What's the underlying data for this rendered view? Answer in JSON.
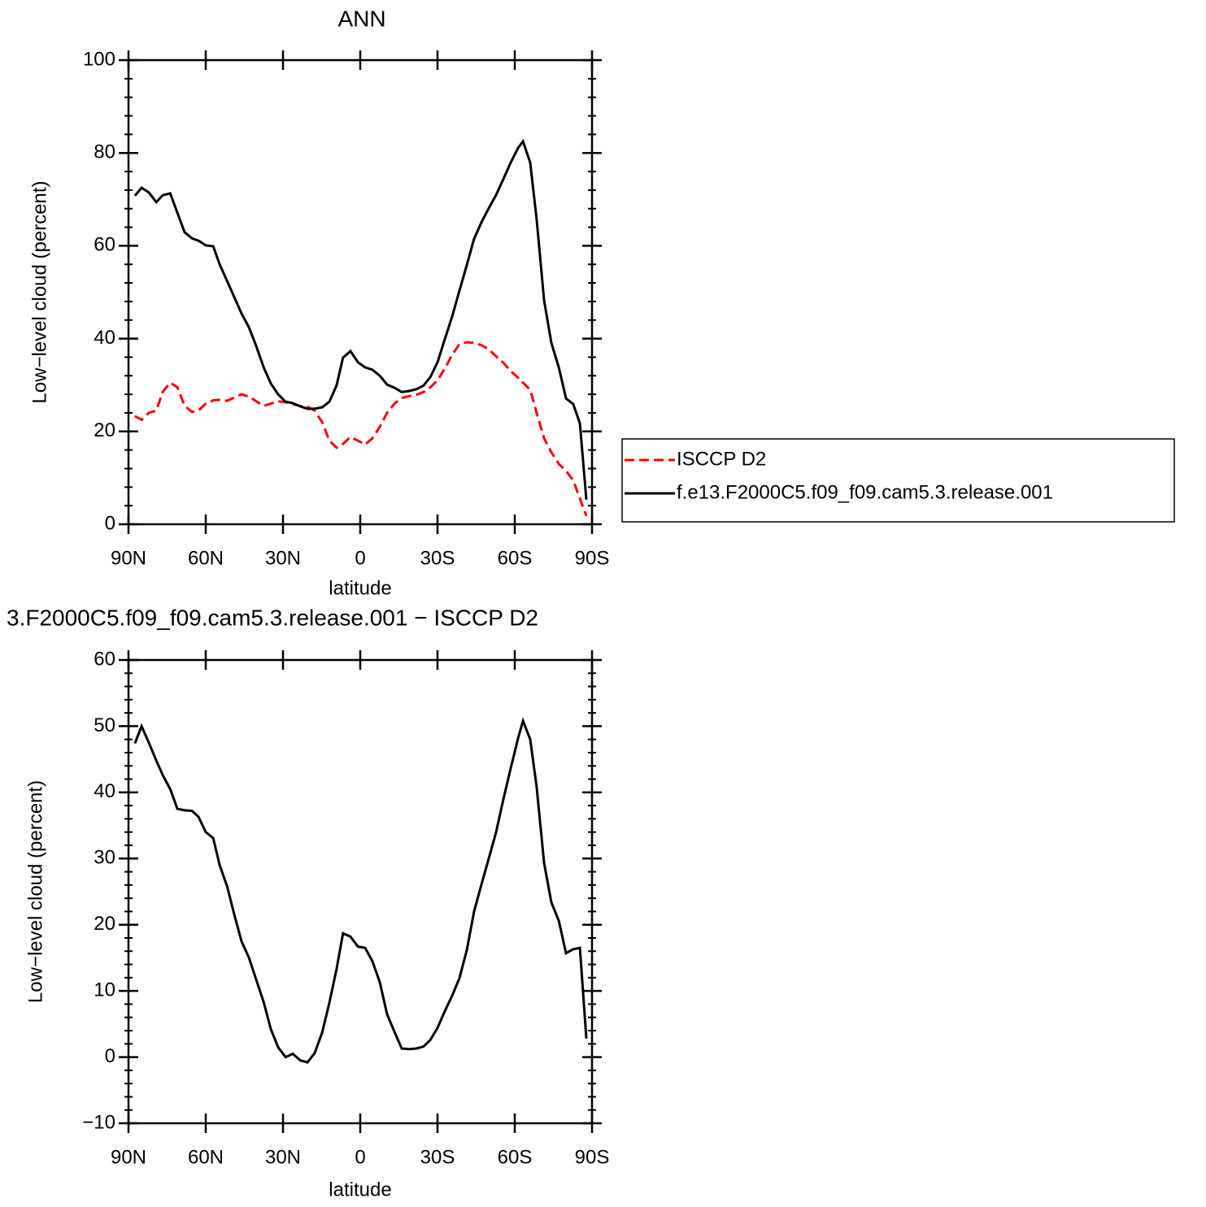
{
  "chart_data": [
    {
      "type": "line",
      "title": "ANN",
      "xlabel": "latitude",
      "ylabel": "Low−level cloud (percent)",
      "x": [
        87.5,
        84.9,
        82.1,
        79.2,
        76.7,
        73.8,
        71.0,
        68.2,
        65.3,
        62.8,
        60.0,
        57.1,
        54.6,
        51.7,
        48.9,
        46.1,
        43.2,
        40.4,
        37.5,
        34.7,
        31.9,
        29.0,
        26.2,
        23.3,
        20.5,
        17.7,
        14.8,
        12.0,
        9.2,
        6.7,
        3.8,
        0.9,
        -1.9,
        -4.7,
        -7.6,
        -10.4,
        -13.3,
        -16.1,
        -18.9,
        -21.8,
        -24.6,
        -27.2,
        -30.0,
        -32.8,
        -35.7,
        -38.5,
        -41.4,
        -44.2,
        -47.0,
        -49.9,
        -52.7,
        -55.6,
        -58.4,
        -61.3,
        -63.2,
        -66.0,
        -68.5,
        -71.4,
        -74.2,
        -77.1,
        -79.9,
        -82.7,
        -85.3,
        -87.8
      ],
      "series": [
        {
          "name": "ISCCP D2",
          "color": "#ff0000",
          "line_style": "dashed",
          "values": [
            23.3,
            22.5,
            24.0,
            24.5,
            28.5,
            30.5,
            29.5,
            25.5,
            24.2,
            24.5,
            26.0,
            26.7,
            26.8,
            26.6,
            27.3,
            28.0,
            27.5,
            26.5,
            25.5,
            26.0,
            26.5,
            26.3,
            25.9,
            25.5,
            25.3,
            24.5,
            22.0,
            18.0,
            16.5,
            17.3,
            18.8,
            18.0,
            17.2,
            18.5,
            21.0,
            24.0,
            26.0,
            27.2,
            27.6,
            27.9,
            28.5,
            29.5,
            31.0,
            33.5,
            36.5,
            38.8,
            39.2,
            39.1,
            38.6,
            37.7,
            36.2,
            34.8,
            33.0,
            31.6,
            30.5,
            29.0,
            24.0,
            18.5,
            15.5,
            13.0,
            11.5,
            9.5,
            5.5,
            1.8
          ]
        },
        {
          "name": "f.e13.F2000C5.f09_f09.cam5.3.release.001",
          "color": "#000000",
          "line_style": "solid",
          "values": [
            70.8,
            72.5,
            71.5,
            69.4,
            70.9,
            71.3,
            67.1,
            62.9,
            61.6,
            61.1,
            60.1,
            59.9,
            56.0,
            52.4,
            48.9,
            45.4,
            42.4,
            38.4,
            33.8,
            30.3,
            28.0,
            26.4,
            26.1,
            25.4,
            24.9,
            24.9,
            25.2,
            26.4,
            29.9,
            35.9,
            37.3,
            34.9,
            33.8,
            33.3,
            32.0,
            30.1,
            29.4,
            28.5,
            28.7,
            29.1,
            29.9,
            31.7,
            34.9,
            39.8,
            44.8,
            50.3,
            55.9,
            61.5,
            65.0,
            68.1,
            70.9,
            74.4,
            77.9,
            81.1,
            82.5,
            77.9,
            65.7,
            48.2,
            39.1,
            33.8,
            27.1,
            25.9,
            21.7,
            5.3
          ]
        }
      ],
      "xlim": [
        90,
        -90
      ],
      "xticks": [
        {
          "value": 90,
          "label": "90N"
        },
        {
          "value": 60,
          "label": "60N"
        },
        {
          "value": 30,
          "label": "30N"
        },
        0,
        {
          "value": -30,
          "label": "30S"
        },
        {
          "value": -60,
          "label": "60S"
        },
        {
          "value": -90,
          "label": "90S"
        }
      ],
      "ylim": [
        0,
        100
      ],
      "yticks": [
        0,
        20,
        40,
        60,
        80,
        100
      ],
      "yminorticks": [
        4,
        8,
        12,
        16,
        24,
        28,
        32,
        36,
        44,
        48,
        52,
        56,
        64,
        68,
        72,
        76,
        84,
        88,
        92,
        96
      ],
      "legend": true
    },
    {
      "type": "line",
      "title": "3.F2000C5.f09_f09.cam5.3.release.001 − ISCCP D2",
      "xlabel": "latitude",
      "ylabel": "Low−level cloud (percent)",
      "x": [
        87.5,
        84.9,
        82.1,
        79.2,
        76.7,
        73.8,
        71.0,
        68.2,
        65.3,
        62.8,
        60.0,
        57.1,
        54.6,
        51.7,
        48.9,
        46.1,
        43.2,
        40.4,
        37.5,
        34.7,
        31.9,
        29.0,
        26.2,
        23.3,
        20.5,
        17.7,
        14.8,
        12.0,
        9.2,
        6.7,
        3.8,
        0.9,
        -1.9,
        -4.7,
        -7.6,
        -10.4,
        -13.3,
        -16.1,
        -18.9,
        -21.8,
        -24.6,
        -27.2,
        -30.0,
        -32.8,
        -35.7,
        -38.5,
        -41.4,
        -44.2,
        -47.0,
        -49.9,
        -52.7,
        -55.6,
        -58.4,
        -61.3,
        -63.2,
        -66.0,
        -68.5,
        -71.4,
        -74.2,
        -77.1,
        -79.9,
        -82.7,
        -85.3,
        -87.8
      ],
      "values": [
        47.4,
        50.0,
        47.5,
        44.8,
        42.6,
        40.5,
        37.5,
        37.3,
        37.2,
        36.3,
        34.0,
        33.1,
        29.0,
        25.8,
        21.5,
        17.5,
        15.0,
        11.7,
        8.3,
        4.2,
        1.5,
        0.0,
        0.5,
        -0.5,
        -0.8,
        0.6,
        3.7,
        8.2,
        13.3,
        18.7,
        18.2,
        16.7,
        16.5,
        14.5,
        11.3,
        6.5,
        3.8,
        1.3,
        1.2,
        1.3,
        1.6,
        2.6,
        4.4,
        6.9,
        9.3,
        11.9,
        16.2,
        22.0,
        26.0,
        30.0,
        33.9,
        39.0,
        43.6,
        48.2,
        50.8,
        48.0,
        40.8,
        29.3,
        23.4,
        20.6,
        15.7,
        16.3,
        16.5,
        2.8
      ],
      "color": "#000000",
      "xlim": [
        90,
        -90
      ],
      "xticks": [
        {
          "value": 90,
          "label": "90N"
        },
        {
          "value": 60,
          "label": "60N"
        },
        {
          "value": 30,
          "label": "30N"
        },
        0,
        {
          "value": -30,
          "label": "30S"
        },
        {
          "value": -60,
          "label": "60S"
        },
        {
          "value": -90,
          "label": "90S"
        }
      ],
      "ylim": [
        -10,
        60
      ],
      "yticks": [
        {
          "value": -10,
          "label": "−10"
        },
        0,
        10,
        20,
        30,
        40,
        50,
        60
      ],
      "yminorticks": [
        -8,
        -6,
        -4,
        -2,
        2,
        4,
        6,
        8,
        12,
        14,
        16,
        18,
        22,
        24,
        26,
        28,
        32,
        34,
        36,
        38,
        42,
        44,
        46,
        48,
        52,
        54,
        56,
        58
      ],
      "legend": false
    }
  ]
}
